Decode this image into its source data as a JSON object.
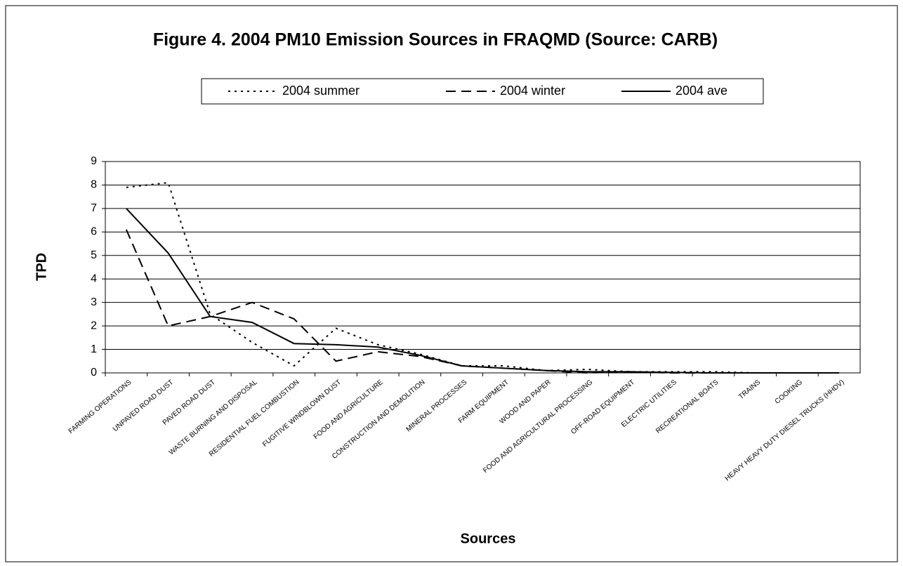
{
  "chart_data": {
    "type": "line",
    "title": "Figure 4. 2004 PM10 Emission Sources in FRAQMD (Source: CARB)",
    "x_label": "Sources",
    "y_label": "TPD",
    "categories": [
      "FARMING OPERATIONS",
      "UNPAVED ROAD DUST",
      "PAVED ROAD DUST",
      "WASTE BURNING AND DISPOSAL",
      "RESIDENTIAL FUEL COMBUSTION",
      "FUGITIVE WINDBLOWN DUST",
      "FOOD AND AGRICULTURE",
      "CONSTRUCTION AND DEMOLITION",
      "MINERAL PROCESSES",
      "FARM EQUIPMENT",
      "WOOD AND PAPER",
      "FOOD AND AGRICULTURAL PROCESSING",
      "OFF-ROAD EQUIPMENT",
      "ELECTRIC UTILITIES",
      "RECREATIONAL BOATS",
      "TRAINS",
      "COOKING",
      "HEAVY HEAVY DUTY DIESEL TRUCKS (HHDV)"
    ],
    "series": [
      {
        "name": "2004 summer",
        "color": "#000000",
        "dash": "dotted",
        "values": [
          7.9,
          8.1,
          2.5,
          1.3,
          0.3,
          1.9,
          1.2,
          0.8,
          0.3,
          0.3,
          0.1,
          0.15,
          0.05,
          0.05,
          0.05,
          0,
          0,
          0
        ]
      },
      {
        "name": "2004 winter",
        "color": "#000000",
        "dash": "dashed",
        "values": [
          6.1,
          2.0,
          2.4,
          3.0,
          2.3,
          0.5,
          0.9,
          0.7,
          0.3,
          0.2,
          0.1,
          0,
          0.05,
          0,
          0,
          0,
          0,
          0
        ]
      },
      {
        "name": "2004 ave",
        "color": "#000000",
        "dash": "solid",
        "values": [
          7.0,
          5.1,
          2.4,
          2.15,
          1.25,
          1.2,
          1.1,
          0.75,
          0.3,
          0.2,
          0.1,
          0.05,
          0.05,
          0.02,
          0,
          0,
          0,
          0
        ]
      }
    ],
    "ylim": [
      0,
      9
    ],
    "yticks": [
      0,
      1,
      2,
      3,
      4,
      5,
      6,
      7,
      8,
      9
    ],
    "grid": true,
    "legend": "top"
  }
}
